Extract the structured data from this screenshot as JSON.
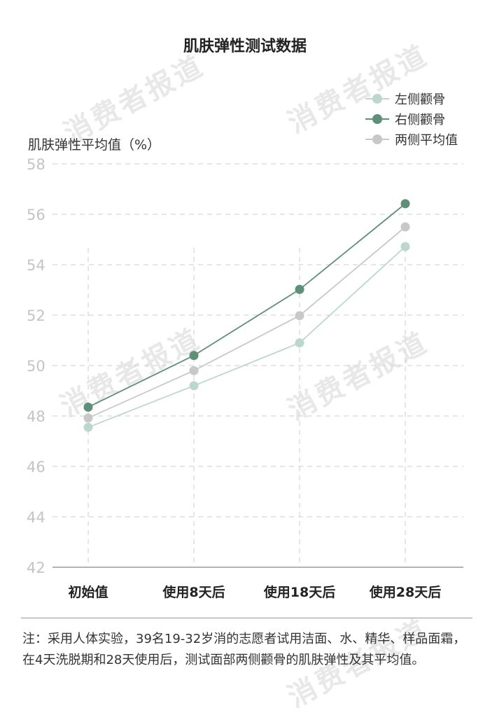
{
  "chart_data": {
    "type": "line",
    "title": "肌肤弹性测试数据",
    "ylabel": "肌肤弹性平均值（%）",
    "xlabel": "",
    "categories": [
      "初始值",
      "使用8天后",
      "使用18天后",
      "使用28天后"
    ],
    "ylim": [
      42,
      58
    ],
    "yticks": [
      42,
      44,
      46,
      48,
      50,
      52,
      54,
      56,
      58
    ],
    "grid": true,
    "legend_position": "top-right",
    "series": [
      {
        "name": "左侧颧骨",
        "color": "#bcd8cc",
        "values": [
          47.55,
          49.2,
          50.9,
          54.72
        ]
      },
      {
        "name": "右侧颧骨",
        "color": "#5e8f78",
        "values": [
          48.35,
          50.4,
          53.02,
          56.42
        ]
      },
      {
        "name": "两侧平均值",
        "color": "#c8c8c8",
        "values": [
          47.92,
          49.8,
          51.98,
          55.5
        ]
      }
    ]
  },
  "note": "注：采用人体实验，39名19-32岁消的志愿者试用洁面、水、精华、样品面霜，在4天洗脱期和28天使用后，测试面部两侧颧骨的肌肤弹性及其平均值。",
  "watermark": "消费者报道"
}
